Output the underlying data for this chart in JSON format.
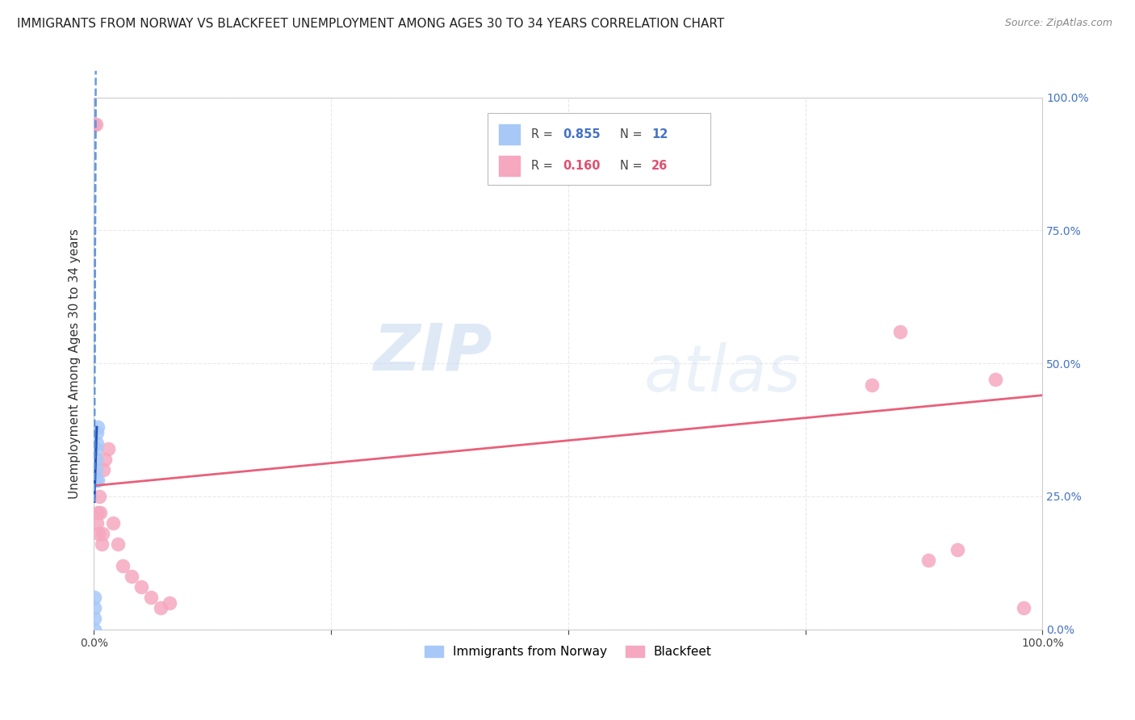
{
  "title": "IMMIGRANTS FROM NORWAY VS BLACKFEET UNEMPLOYMENT AMONG AGES 30 TO 34 YEARS CORRELATION CHART",
  "source": "Source: ZipAtlas.com",
  "ylabel": "Unemployment Among Ages 30 to 34 years",
  "xlim": [
    0,
    1.0
  ],
  "ylim": [
    0,
    1.0
  ],
  "legend_r1": "0.855",
  "legend_n1": "12",
  "legend_r2": "0.160",
  "legend_n2": "26",
  "legend_label1": "Immigrants from Norway",
  "legend_label2": "Blackfeet",
  "norway_x": [
    0.001,
    0.001,
    0.001,
    0.001,
    0.002,
    0.002,
    0.002,
    0.002,
    0.003,
    0.003,
    0.004,
    0.004
  ],
  "norway_y": [
    0.0,
    0.02,
    0.04,
    0.06,
    0.28,
    0.3,
    0.32,
    0.34,
    0.35,
    0.37,
    0.38,
    0.28
  ],
  "blackfeet_x": [
    0.001,
    0.002,
    0.003,
    0.004,
    0.005,
    0.006,
    0.007,
    0.008,
    0.009,
    0.01,
    0.012,
    0.015,
    0.02,
    0.025,
    0.03,
    0.04,
    0.05,
    0.06,
    0.07,
    0.08,
    0.82,
    0.85,
    0.88,
    0.91,
    0.95,
    0.98
  ],
  "blackfeet_y": [
    0.95,
    0.95,
    0.2,
    0.22,
    0.18,
    0.25,
    0.22,
    0.16,
    0.18,
    0.3,
    0.32,
    0.34,
    0.2,
    0.16,
    0.12,
    0.1,
    0.08,
    0.06,
    0.04,
    0.05,
    0.46,
    0.56,
    0.13,
    0.15,
    0.47,
    0.04
  ],
  "norway_color": "#a8c8f8",
  "blackfeet_color": "#f5a8c0",
  "norway_line_solid_color": "#2255bb",
  "norway_line_dash_color": "#6699dd",
  "blackfeet_line_color": "#e8607a",
  "background_color": "#ffffff",
  "watermark_zip": "ZIP",
  "watermark_atlas": "atlas",
  "title_fontsize": 11,
  "source_fontsize": 9,
  "grid_color": "#e8e8ee",
  "grid_style": "--"
}
